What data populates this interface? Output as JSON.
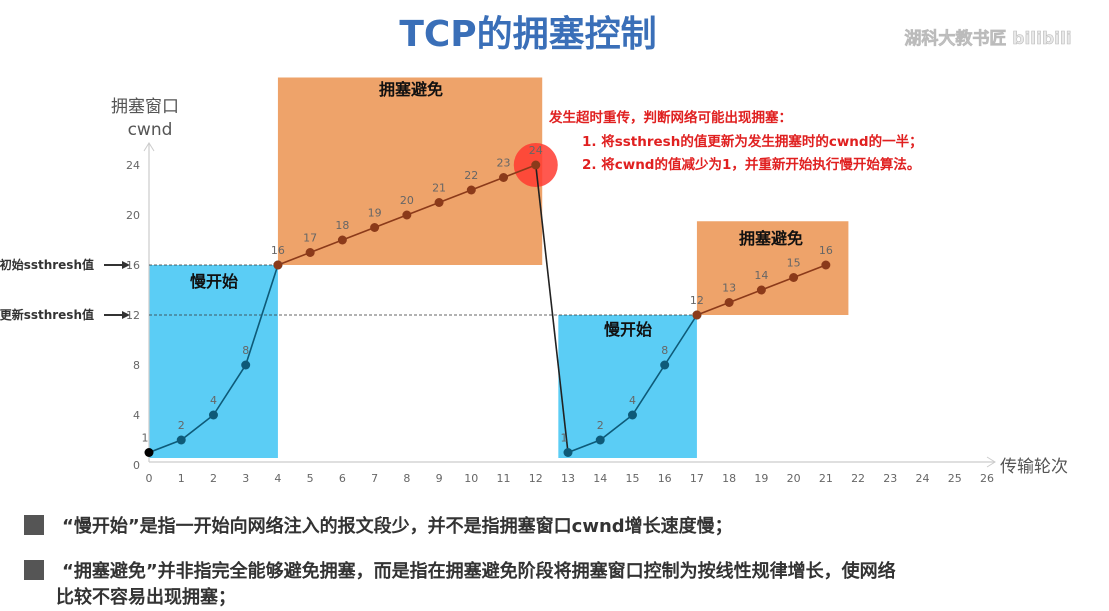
{
  "title": "TCP的拥塞控制",
  "watermark": "湖科大教书匠 bilibili",
  "chart_data": {
    "type": "line",
    "ylabel": [
      "拥塞窗口",
      "cwnd"
    ],
    "xlabel": "传输轮次",
    "xlim": [
      0,
      26
    ],
    "ylim": [
      0,
      24
    ],
    "x_ticks": [
      0,
      1,
      2,
      3,
      4,
      5,
      6,
      7,
      8,
      9,
      10,
      11,
      12,
      13,
      14,
      15,
      16,
      17,
      18,
      19,
      20,
      21,
      22,
      23,
      24,
      25,
      26
    ],
    "y_ticks": [
      0,
      4,
      8,
      12,
      16,
      20,
      24
    ],
    "series": [
      {
        "phase": "slow-start",
        "x": [
          0,
          1,
          2,
          3,
          4
        ],
        "y": [
          1,
          2,
          4,
          8,
          16
        ],
        "color": "#0e5a78"
      },
      {
        "phase": "congestion-avoidance",
        "x": [
          4,
          5,
          6,
          7,
          8,
          9,
          10,
          11,
          12
        ],
        "y": [
          16,
          17,
          18,
          19,
          20,
          21,
          22,
          23,
          24
        ],
        "color": "#8b3a1a"
      },
      {
        "phase": "drop",
        "x": [
          12,
          13
        ],
        "y": [
          24,
          1
        ],
        "color": "#222222"
      },
      {
        "phase": "slow-start",
        "x": [
          13,
          14,
          15,
          16,
          17
        ],
        "y": [
          1,
          2,
          4,
          8,
          12
        ],
        "color": "#0e5a78"
      },
      {
        "phase": "congestion-avoidance",
        "x": [
          17,
          18,
          19,
          20,
          21
        ],
        "y": [
          12,
          13,
          14,
          15,
          16
        ],
        "color": "#8b3a1a"
      }
    ],
    "regions": [
      {
        "label": "慢开始",
        "x": [
          0,
          4
        ],
        "y": [
          0,
          16
        ],
        "color": "#5bcdf5"
      },
      {
        "label": "拥塞避免",
        "x": [
          4,
          12.2
        ],
        "y": [
          16,
          31
        ],
        "color": "#eea36a"
      },
      {
        "label": "慢开始",
        "x": [
          12.7,
          17
        ],
        "y": [
          0,
          12
        ],
        "color": "#5bcdf5"
      },
      {
        "label": "拥塞避免",
        "x": [
          17,
          21.7
        ],
        "y": [
          12,
          19.5
        ],
        "color": "#eea36a"
      }
    ],
    "thresholds": [
      {
        "label": "初始ssthresh值",
        "y": 16
      },
      {
        "label": "更新ssthresh值",
        "y": 12
      }
    ],
    "annotation": {
      "heading": "发生超时重传，判断网络可能出现拥塞：",
      "lines": [
        "1. 将ssthresh的值更新为发生拥塞时的cwnd的一半；",
        "2. 将cwnd的值减少为1，并重新开始执行慢开始算法。"
      ],
      "color": "#e02020"
    }
  },
  "notes": [
    "“慢开始”是指一开始向网络注入的报文段少，并不是指拥塞窗口cwnd增长速度慢；",
    "“拥塞避免”并非指完全能够避免拥塞，而是指在拥塞避免阶段将拥塞窗口控制为按线性规律增长，使网络",
    "比较不容易出现拥塞；"
  ]
}
